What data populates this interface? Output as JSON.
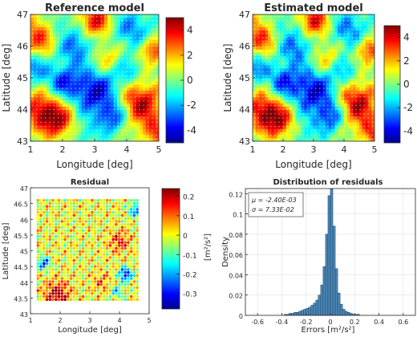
{
  "chart_data": [
    {
      "type": "heatmap",
      "title": "Reference model",
      "xlabel": "Longitude [deg]",
      "ylabel": "Latitude [deg]",
      "xlim": [
        1,
        5
      ],
      "ylim": [
        43,
        47
      ],
      "xticks": [
        "1",
        "2",
        "3",
        "4",
        "5"
      ],
      "yticks": [
        "43",
        "44",
        "45",
        "46",
        "47"
      ],
      "colorbar": {
        "range": [
          -5,
          5
        ],
        "ticks": [
          "4",
          "2",
          "0",
          "-2",
          "-4"
        ],
        "colormap": "jet"
      }
    },
    {
      "type": "heatmap",
      "title": "Estimated model",
      "xlabel": "Longitude [deg]",
      "ylabel": "Latitude [deg]",
      "xlim": [
        1,
        5
      ],
      "ylim": [
        43,
        47
      ],
      "xticks": [
        "1",
        "2",
        "3",
        "4",
        "5"
      ],
      "yticks": [
        "43",
        "44",
        "45",
        "46",
        "47"
      ],
      "colorbar": {
        "range": [
          -5,
          5
        ],
        "ticks": [
          "4",
          "2",
          "0",
          "-2",
          "-4"
        ],
        "colormap": "jet"
      }
    },
    {
      "type": "scatter",
      "title": "Residual",
      "xlabel": "Longitude [deg]",
      "ylabel": "Latitude [deg]",
      "xlim": [
        1,
        5
      ],
      "ylim": [
        43,
        47
      ],
      "xticks": [
        "1",
        "2",
        "3",
        "4",
        "5"
      ],
      "yticks": [
        "43",
        "43.5",
        "44",
        "44.5",
        "45",
        "45.5",
        "46",
        "46.5",
        "47"
      ],
      "colorbar": {
        "range": [
          -0.38,
          0.24
        ],
        "ticks": [
          "0.2",
          "0.1",
          "0",
          "-0.1",
          "-0.2",
          "-0.3"
        ],
        "label": "[m²/s²]",
        "colormap": "jet"
      }
    },
    {
      "type": "bar",
      "title": "Distribution of residuals",
      "xlabel": "Errors [m²/s²]",
      "ylabel": "Density",
      "xlim": [
        -0.7,
        0.7
      ],
      "ylim": [
        0,
        0.125
      ],
      "xticks": [
        "-0.6",
        "-0.4",
        "-0.2",
        "0",
        "0.2",
        "0.4",
        "0.6"
      ],
      "yticks": [
        "0",
        "0.02",
        "0.04",
        "0.06",
        "0.08",
        "0.1",
        "0.12"
      ],
      "grid": true,
      "bar_color": "#4a87b8",
      "bin_width": 0.02,
      "bin_centers": [
        -0.37,
        -0.35,
        -0.33,
        -0.31,
        -0.29,
        -0.27,
        -0.25,
        -0.23,
        -0.21,
        -0.19,
        -0.17,
        -0.15,
        -0.13,
        -0.11,
        -0.09,
        -0.07,
        -0.05,
        -0.03,
        -0.01,
        0.01,
        0.03,
        0.05,
        0.07,
        0.09,
        0.11,
        0.13,
        0.15,
        0.17,
        0.19,
        0.21,
        0.23
      ],
      "values": [
        0.001,
        0.001,
        0.002,
        0.002,
        0.003,
        0.003,
        0.004,
        0.005,
        0.006,
        0.007,
        0.008,
        0.01,
        0.012,
        0.015,
        0.02,
        0.03,
        0.048,
        0.08,
        0.118,
        0.128,
        0.088,
        0.046,
        0.022,
        0.011,
        0.006,
        0.004,
        0.003,
        0.002,
        0.001,
        0.001,
        0.001
      ],
      "annotation": {
        "mu": "μ = -2.40E-03",
        "sigma": "σ = 7.33E-02"
      }
    }
  ]
}
